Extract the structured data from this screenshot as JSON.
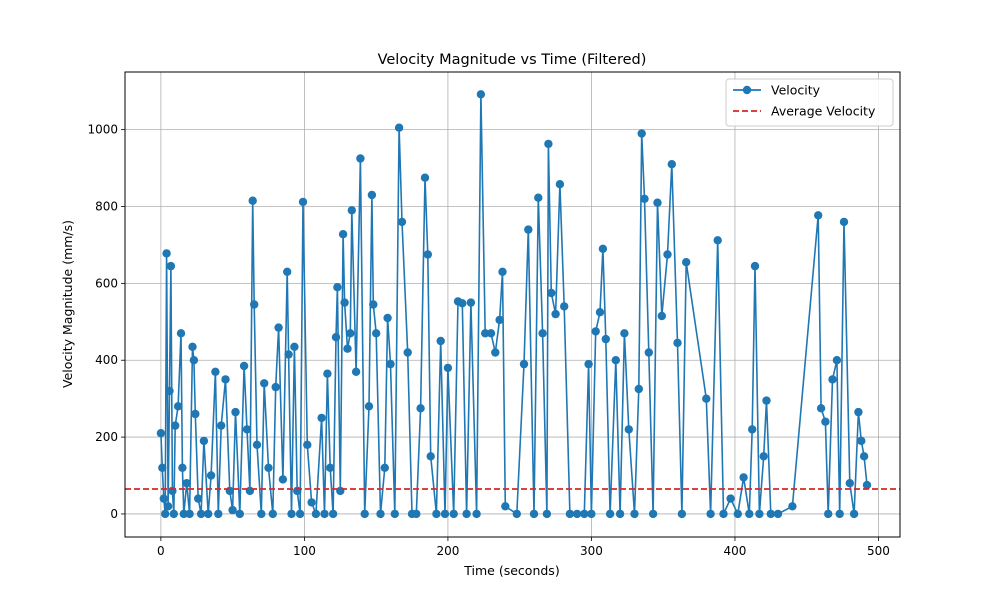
{
  "chart_data": {
    "type": "line",
    "title": "Velocity Magnitude vs Time (Filtered)",
    "xlabel": "Time (seconds)",
    "ylabel": "Velocity Magnitude (mm/s)",
    "xlim": [
      -25,
      515
    ],
    "ylim": [
      -60,
      1150
    ],
    "xticks": [
      0,
      100,
      200,
      300,
      400,
      500
    ],
    "xtick_labels": [
      "0",
      "100",
      "200",
      "300",
      "400",
      "500"
    ],
    "yticks": [
      0,
      200,
      400,
      600,
      800,
      1000
    ],
    "ytick_labels": [
      "0",
      "200",
      "400",
      "600",
      "800",
      "1000"
    ],
    "grid": true,
    "legend_position": "top-right",
    "series": [
      {
        "name": "Velocity",
        "color": "#1f77b4",
        "marker": "circle",
        "x": [
          0,
          1,
          2,
          3,
          4,
          5,
          6,
          7,
          8,
          9,
          10,
          12,
          14,
          15,
          16,
          18,
          20,
          22,
          23,
          24,
          26,
          28,
          30,
          33,
          35,
          38,
          40,
          42,
          45,
          48,
          50,
          52,
          55,
          58,
          60,
          62,
          64,
          65,
          67,
          70,
          72,
          75,
          78,
          80,
          82,
          85,
          88,
          89,
          91,
          93,
          95,
          97,
          99,
          102,
          105,
          108,
          112,
          114,
          116,
          118,
          120,
          122,
          123,
          125,
          127,
          128,
          130,
          132,
          133,
          136,
          139,
          142,
          145,
          147,
          148,
          150,
          153,
          156,
          158,
          160,
          163,
          166,
          168,
          172,
          175,
          178,
          181,
          184,
          186,
          188,
          192,
          195,
          198,
          200,
          204,
          207,
          210,
          213,
          216,
          220,
          223,
          226,
          230,
          233,
          236,
          238,
          240,
          248,
          253,
          256,
          260,
          263,
          266,
          269,
          270,
          272,
          275,
          278,
          281,
          285,
          290,
          295,
          298,
          300,
          303,
          306,
          308,
          310,
          313,
          317,
          320,
          323,
          326,
          330,
          333,
          335,
          337,
          340,
          343,
          346,
          349,
          353,
          356,
          360,
          363,
          366,
          380,
          383,
          388,
          392,
          397,
          402,
          406,
          410,
          412,
          414,
          417,
          420,
          422,
          425,
          430,
          440,
          458,
          460,
          463,
          465,
          468,
          471,
          473,
          476,
          480,
          483,
          486,
          488,
          490,
          492
        ],
        "y": [
          210,
          120,
          40,
          0,
          678,
          20,
          320,
          645,
          60,
          0,
          230,
          280,
          470,
          120,
          0,
          80,
          0,
          435,
          400,
          260,
          40,
          0,
          190,
          0,
          100,
          370,
          0,
          230,
          350,
          60,
          10,
          265,
          0,
          385,
          220,
          60,
          815,
          545,
          180,
          0,
          340,
          120,
          0,
          330,
          485,
          90,
          630,
          415,
          0,
          435,
          60,
          0,
          812,
          180,
          30,
          0,
          250,
          0,
          365,
          120,
          0,
          460,
          590,
          60,
          728,
          550,
          430,
          470,
          790,
          370,
          925,
          0,
          280,
          830,
          545,
          470,
          0,
          120,
          510,
          390,
          0,
          1005,
          760,
          420,
          0,
          0,
          275,
          875,
          675,
          150,
          0,
          450,
          0,
          380,
          0,
          553,
          548,
          0,
          550,
          0,
          1092,
          470,
          470,
          420,
          505,
          630,
          20,
          0,
          390,
          740,
          0,
          823,
          470,
          0,
          963,
          575,
          520,
          858,
          540,
          0,
          0,
          0,
          390,
          0,
          475,
          525,
          690,
          455,
          0,
          400,
          0,
          470,
          220,
          0,
          325,
          990,
          820,
          420,
          0,
          810,
          515,
          675,
          910,
          445,
          0,
          655,
          300,
          0,
          712,
          0,
          40,
          0,
          95,
          0,
          220,
          645,
          0,
          150,
          295,
          0,
          0,
          20,
          777,
          275,
          240,
          0,
          350,
          400,
          0,
          760,
          80,
          0,
          265,
          190,
          150,
          75
        ]
      },
      {
        "name": "Average Velocity",
        "color": "#d62728",
        "line_style": "dashed",
        "y_constant": 65
      }
    ]
  }
}
